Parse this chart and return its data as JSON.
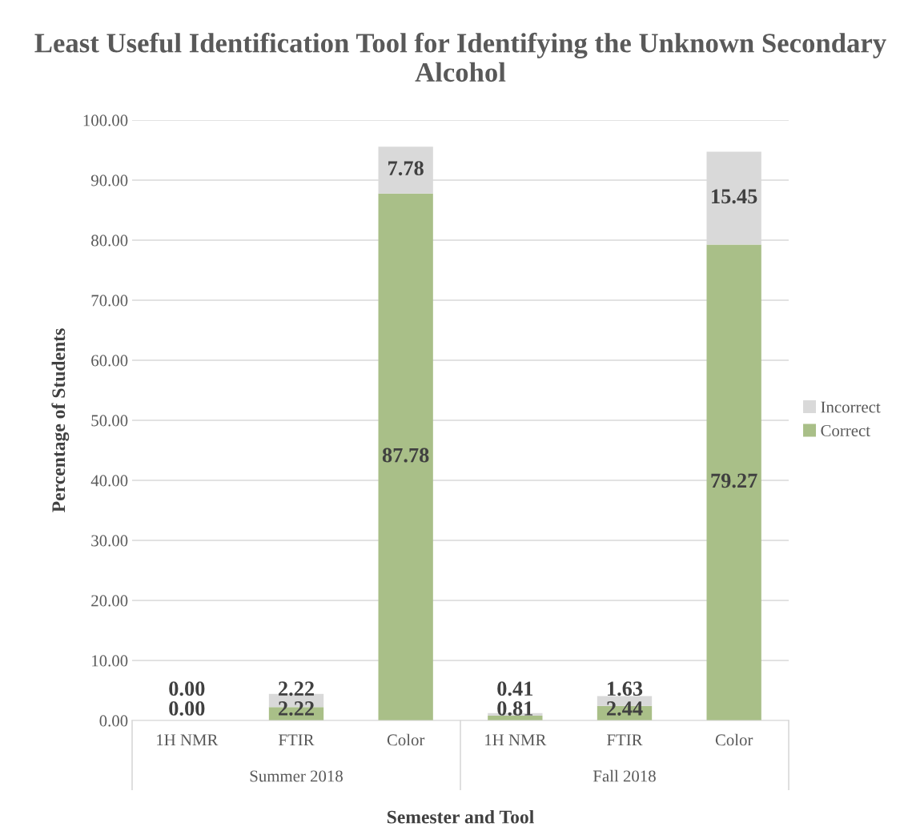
{
  "chart_data": {
    "type": "bar",
    "title": "Least Useful Identification Tool for Identifying the Unknown Secondary Alcohol",
    "xlabel": "Semester and Tool",
    "ylabel": "Percentage of Students",
    "categories": [
      "1H NMR",
      "FTIR",
      "Color",
      "1H NMR",
      "FTIR",
      "Color"
    ],
    "annotations": [
      "Summer 2018",
      "Fall 2018"
    ],
    "stacked": true,
    "legend": "right",
    "grid": "y",
    "ylim": [
      0,
      100
    ],
    "yticks": [
      {
        "value": 0,
        "label": "0.00"
      },
      {
        "value": 10,
        "label": "10.00"
      },
      {
        "value": 20,
        "label": "20.00"
      },
      {
        "value": 30,
        "label": "30.00"
      },
      {
        "value": 40,
        "label": "40.00"
      },
      {
        "value": 50,
        "label": "50.00"
      },
      {
        "value": 60,
        "label": "60.00"
      },
      {
        "value": 70,
        "label": "70.00"
      },
      {
        "value": 80,
        "label": "80.00"
      },
      {
        "value": 90,
        "label": "90.00"
      },
      {
        "value": 100,
        "label": "100.00"
      }
    ],
    "series": [
      {
        "name": "Correct",
        "color": "#a9bf88",
        "values": [
          0.0,
          2.22,
          87.78,
          0.81,
          2.44,
          79.27
        ],
        "value_labels": [
          "0.00",
          "2.22",
          "87.78",
          "0.81",
          "2.44",
          "79.27"
        ]
      },
      {
        "name": "Incorrect",
        "color": "#d9d9d9",
        "values": [
          0.0,
          2.22,
          7.78,
          0.41,
          1.63,
          15.45
        ],
        "value_labels": [
          "0.00",
          "2.22",
          "7.78",
          "0.41",
          "1.63",
          "15.45"
        ]
      }
    ]
  }
}
